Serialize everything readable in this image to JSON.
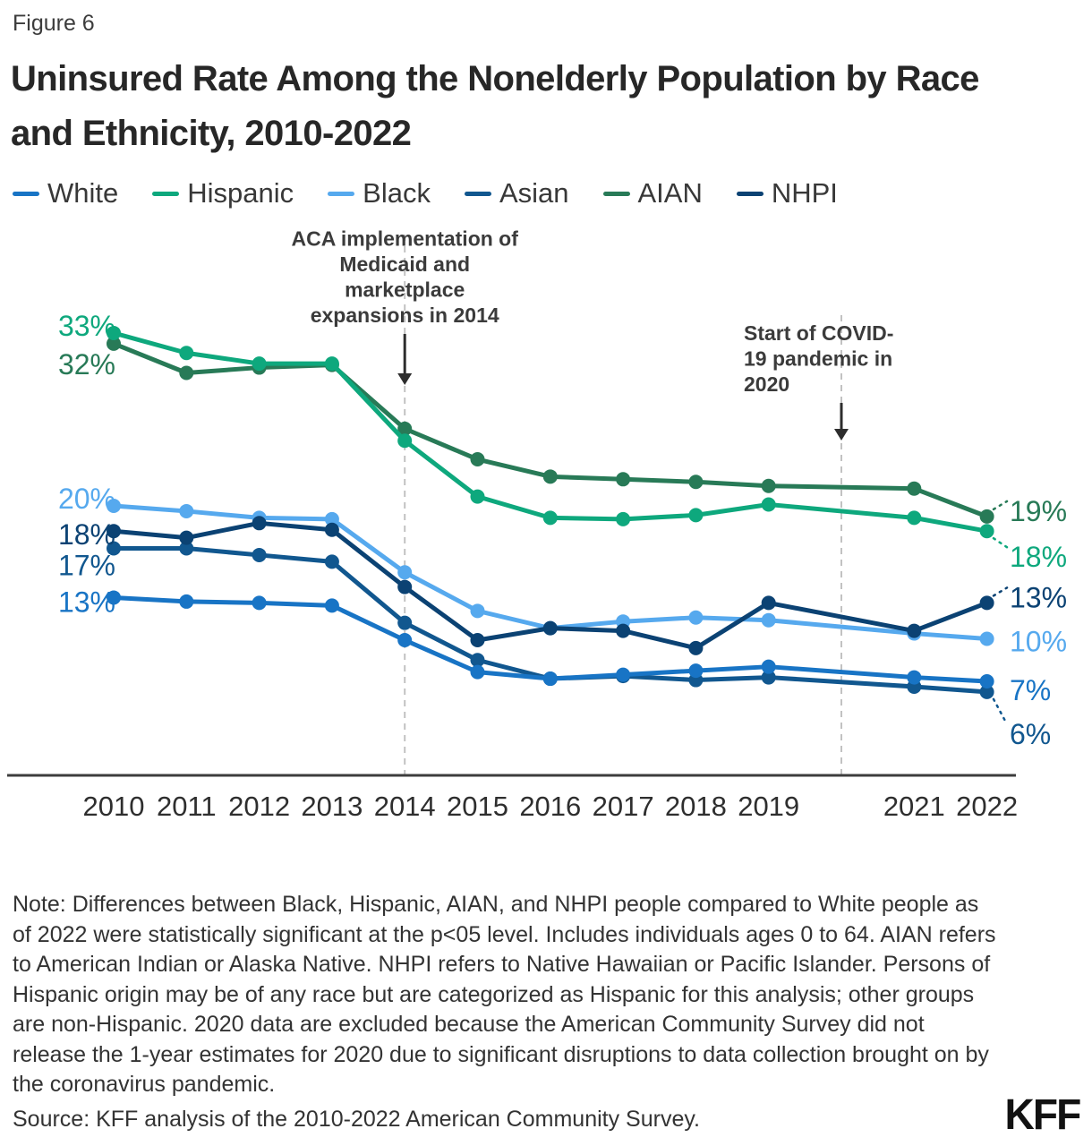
{
  "figure_label": "Figure 6",
  "title": "Uninsured Rate Among the Nonelderly Population by Race and Ethnicity, 2010-2022",
  "legend": [
    {
      "label": "White",
      "color": "#1874c5"
    },
    {
      "label": "Hispanic",
      "color": "#0ea87d"
    },
    {
      "label": "Black",
      "color": "#56a9ee"
    },
    {
      "label": "Asian",
      "color": "#11578f"
    },
    {
      "label": "AIAN",
      "color": "#287a57"
    },
    {
      "label": "NHPI",
      "color": "#0b4273"
    }
  ],
  "chart_data": {
    "type": "line",
    "x": [
      2010,
      2011,
      2012,
      2013,
      2014,
      2015,
      2016,
      2017,
      2018,
      2019,
      2021,
      2022
    ],
    "excluded_year": 2020,
    "ylim": [
      0,
      35
    ],
    "grid": false,
    "legend_position": "top",
    "series": [
      {
        "name": "White",
        "color": "#1874c5",
        "values": [
          13.1,
          12.8,
          12.7,
          12.5,
          9.9,
          7.5,
          7.0,
          7.3,
          7.6,
          7.9,
          7.1,
          6.8
        ]
      },
      {
        "name": "Hispanic",
        "color": "#0ea87d",
        "values": [
          33.0,
          31.5,
          30.7,
          30.7,
          24.9,
          20.7,
          19.1,
          19.0,
          19.3,
          20.1,
          19.1,
          18.1
        ]
      },
      {
        "name": "Black",
        "color": "#56a9ee",
        "values": [
          20.0,
          19.6,
          19.1,
          19.0,
          15.0,
          12.1,
          10.8,
          11.3,
          11.6,
          11.4,
          10.4,
          10.0
        ]
      },
      {
        "name": "Asian",
        "color": "#11578f",
        "values": [
          16.8,
          16.8,
          16.3,
          15.8,
          11.2,
          8.4,
          7.0,
          7.2,
          6.9,
          7.1,
          6.4,
          6.0
        ]
      },
      {
        "name": "AIAN",
        "color": "#287a57",
        "values": [
          32.2,
          30.0,
          30.4,
          30.6,
          25.8,
          23.5,
          22.2,
          22.0,
          21.8,
          21.5,
          21.3,
          19.2
        ]
      },
      {
        "name": "NHPI",
        "color": "#0b4273",
        "values": [
          18.1,
          17.6,
          18.7,
          18.2,
          13.9,
          9.9,
          10.8,
          10.6,
          9.3,
          12.7,
          10.6,
          12.7
        ]
      }
    ],
    "draw_order": [
      "AIAN",
      "Hispanic",
      "Black",
      "Asian",
      "NHPI",
      "White"
    ],
    "start_labels": [
      {
        "text": "33%",
        "series": "Hispanic",
        "dy": -8
      },
      {
        "text": "32%",
        "series": "AIAN",
        "dy": 23
      },
      {
        "text": "20%",
        "series": "Black",
        "dy": -8
      },
      {
        "text": "18%",
        "series": "NHPI",
        "dy": 4
      },
      {
        "text": "17%",
        "series": "Asian",
        "dy": 19
      },
      {
        "text": "13%",
        "series": "White",
        "dy": 5
      }
    ],
    "end_labels": [
      {
        "text": "19%",
        "series": "AIAN",
        "dy": -6,
        "leader": true
      },
      {
        "text": "18%",
        "series": "Hispanic",
        "dy": 29,
        "leader": true
      },
      {
        "text": "13%",
        "series": "NHPI",
        "dy": -6,
        "leader": true
      },
      {
        "text": "10%",
        "series": "Black",
        "dy": 3,
        "leader": false
      },
      {
        "text": "7%",
        "series": "White",
        "dy": 10,
        "leader": false
      },
      {
        "text": "6%",
        "series": "Asian",
        "dy": 47,
        "leader": true
      }
    ],
    "annotations": [
      {
        "lines": [
          "ACA implementation of",
          "Medicaid and",
          "marketplace",
          "expansions in 2014"
        ],
        "year": 2014,
        "align": "center"
      },
      {
        "lines": [
          "Start of COVID-",
          "19 pandemic in",
          "2020"
        ],
        "year": 2020,
        "align": "left"
      }
    ]
  },
  "note": "Note: Differences between Black, Hispanic, AIAN, and NHPI people compared to White people as of 2022 were statistically significant at the p<05 level. Includes individuals ages 0 to 64. AIAN refers to American Indian or Alaska Native. NHPI refers to Native Hawaiian or Pacific Islander. Persons of Hispanic origin may be of any race but are categorized as Hispanic for this analysis; other groups are non-Hispanic. 2020 data are excluded because the American Community Survey did not release the 1-year estimates for 2020 due to significant disruptions to data collection brought on by the coronavirus pandemic.",
  "source": "Source: KFF analysis of the 2010-2022 American Community Survey.",
  "brand": "KFF"
}
